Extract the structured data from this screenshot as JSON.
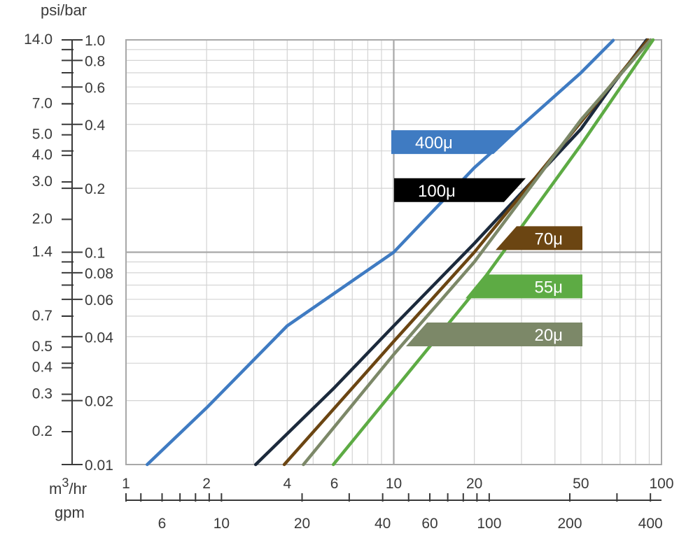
{
  "chart_data": {
    "type": "line",
    "title": "",
    "scale": "log-log",
    "grid": true,
    "legend_placement": "inside-center-right",
    "x_axis": {
      "unit_label": "m³/hr",
      "unit_main": "m",
      "unit_super": "3",
      "unit_rest": "/hr",
      "range": [
        1,
        100
      ],
      "ticks": [
        {
          "value": 1,
          "label": "1"
        },
        {
          "value": 2,
          "label": "2"
        },
        {
          "value": 4,
          "label": "4"
        },
        {
          "value": 6,
          "label": "6"
        },
        {
          "value": 10,
          "label": "10"
        },
        {
          "value": 20,
          "label": "20"
        },
        {
          "value": 50,
          "label": "50"
        },
        {
          "value": 100,
          "label": "100"
        }
      ]
    },
    "x2_axis": {
      "unit_label": "gpm",
      "factor_gpm_per_m3hr": 4.4,
      "ticks": [
        {
          "value": 6,
          "label": "6"
        },
        {
          "value": 10,
          "label": "10"
        },
        {
          "value": 20,
          "label": "20"
        },
        {
          "value": 40,
          "label": "40"
        },
        {
          "value": 60,
          "label": "60"
        },
        {
          "value": 100,
          "label": "100"
        },
        {
          "value": 200,
          "label": "200"
        },
        {
          "value": 400,
          "label": "400"
        }
      ],
      "minor_ticks": [
        5,
        7,
        8,
        9,
        30,
        50,
        70,
        80,
        90,
        300
      ]
    },
    "y_axis": {
      "unit_label": "",
      "range": [
        0.01,
        1.0
      ],
      "ticks": [
        {
          "value": 0.01,
          "label": "0.01"
        },
        {
          "value": 0.02,
          "label": "0.02"
        },
        {
          "value": 0.04,
          "label": "0.04"
        },
        {
          "value": 0.06,
          "label": "0.06"
        },
        {
          "value": 0.08,
          "label": "0.08"
        },
        {
          "value": 0.1,
          "label": "0.1"
        },
        {
          "value": 0.2,
          "label": "0.2"
        },
        {
          "value": 0.4,
          "label": "0.4"
        },
        {
          "value": 0.6,
          "label": "0.6"
        },
        {
          "value": 0.8,
          "label": "0.8"
        },
        {
          "value": 1.0,
          "label": "1.0"
        }
      ],
      "minor_ticks": [
        0.03,
        0.05,
        0.07,
        0.09,
        0.3,
        0.5,
        0.7,
        0.9
      ]
    },
    "y2_axis": {
      "unit_label": "psi/bar",
      "factor_psi_per_bar": 14.0,
      "ticks": [
        {
          "value": 0.2,
          "label": "0.2"
        },
        {
          "value": 0.3,
          "label": "0.3"
        },
        {
          "value": 0.4,
          "label": "0.4"
        },
        {
          "value": 0.5,
          "label": "0.5"
        },
        {
          "value": 0.7,
          "label": "0.7"
        },
        {
          "value": 1.4,
          "label": "1.4"
        },
        {
          "value": 2.0,
          "label": "2.0"
        },
        {
          "value": 3.0,
          "label": "3.0"
        },
        {
          "value": 4.0,
          "label": "4.0"
        },
        {
          "value": 5.0,
          "label": "5.0"
        },
        {
          "value": 7.0,
          "label": "7.0"
        },
        {
          "value": 14.0,
          "label": "14.0"
        }
      ]
    },
    "series": [
      {
        "name": "400μ",
        "color": "#3f7bc2",
        "points": [
          [
            1.2,
            0.01
          ],
          [
            2.0,
            0.0185
          ],
          [
            4.0,
            0.045
          ],
          [
            10.0,
            0.1
          ],
          [
            20.0,
            0.25
          ],
          [
            50.0,
            0.7
          ],
          [
            66.0,
            0.995
          ]
        ]
      },
      {
        "name": "100μ",
        "color": "#1c2a3c",
        "points": [
          [
            3.05,
            0.01
          ],
          [
            6.0,
            0.023
          ],
          [
            10.0,
            0.045
          ],
          [
            20.0,
            0.11
          ],
          [
            50.0,
            0.38
          ],
          [
            66.0,
            0.62
          ],
          [
            88.0,
            1.0
          ]
        ]
      },
      {
        "name": "70μ",
        "color": "#6b4512",
        "points": [
          [
            3.9,
            0.01
          ],
          [
            10.0,
            0.038
          ],
          [
            20.0,
            0.1
          ],
          [
            50.0,
            0.41
          ],
          [
            89.0,
            1.0
          ]
        ]
      },
      {
        "name": "20μ",
        "color": "#7c8868",
        "points": [
          [
            4.6,
            0.01
          ],
          [
            10.0,
            0.033
          ],
          [
            20.0,
            0.09
          ],
          [
            50.0,
            0.42
          ],
          [
            91.0,
            1.0
          ]
        ]
      },
      {
        "name": "55μ",
        "color": "#5dab44",
        "points": [
          [
            5.95,
            0.01
          ],
          [
            20.0,
            0.065
          ],
          [
            50.0,
            0.32
          ],
          [
            93.0,
            1.0
          ]
        ]
      }
    ],
    "legend": [
      {
        "label": "400μ",
        "color": "#3f7bc2",
        "y_value": 0.33
      },
      {
        "label": "100μ",
        "color": "#000000",
        "y_value": 0.196
      },
      {
        "label": "70μ",
        "color": "#6b4512",
        "y_value": 0.1165
      },
      {
        "label": "55μ",
        "color": "#5dab44",
        "y_value": 0.069
      },
      {
        "label": "20μ",
        "color": "#7c8868",
        "y_value": 0.041
      }
    ]
  }
}
